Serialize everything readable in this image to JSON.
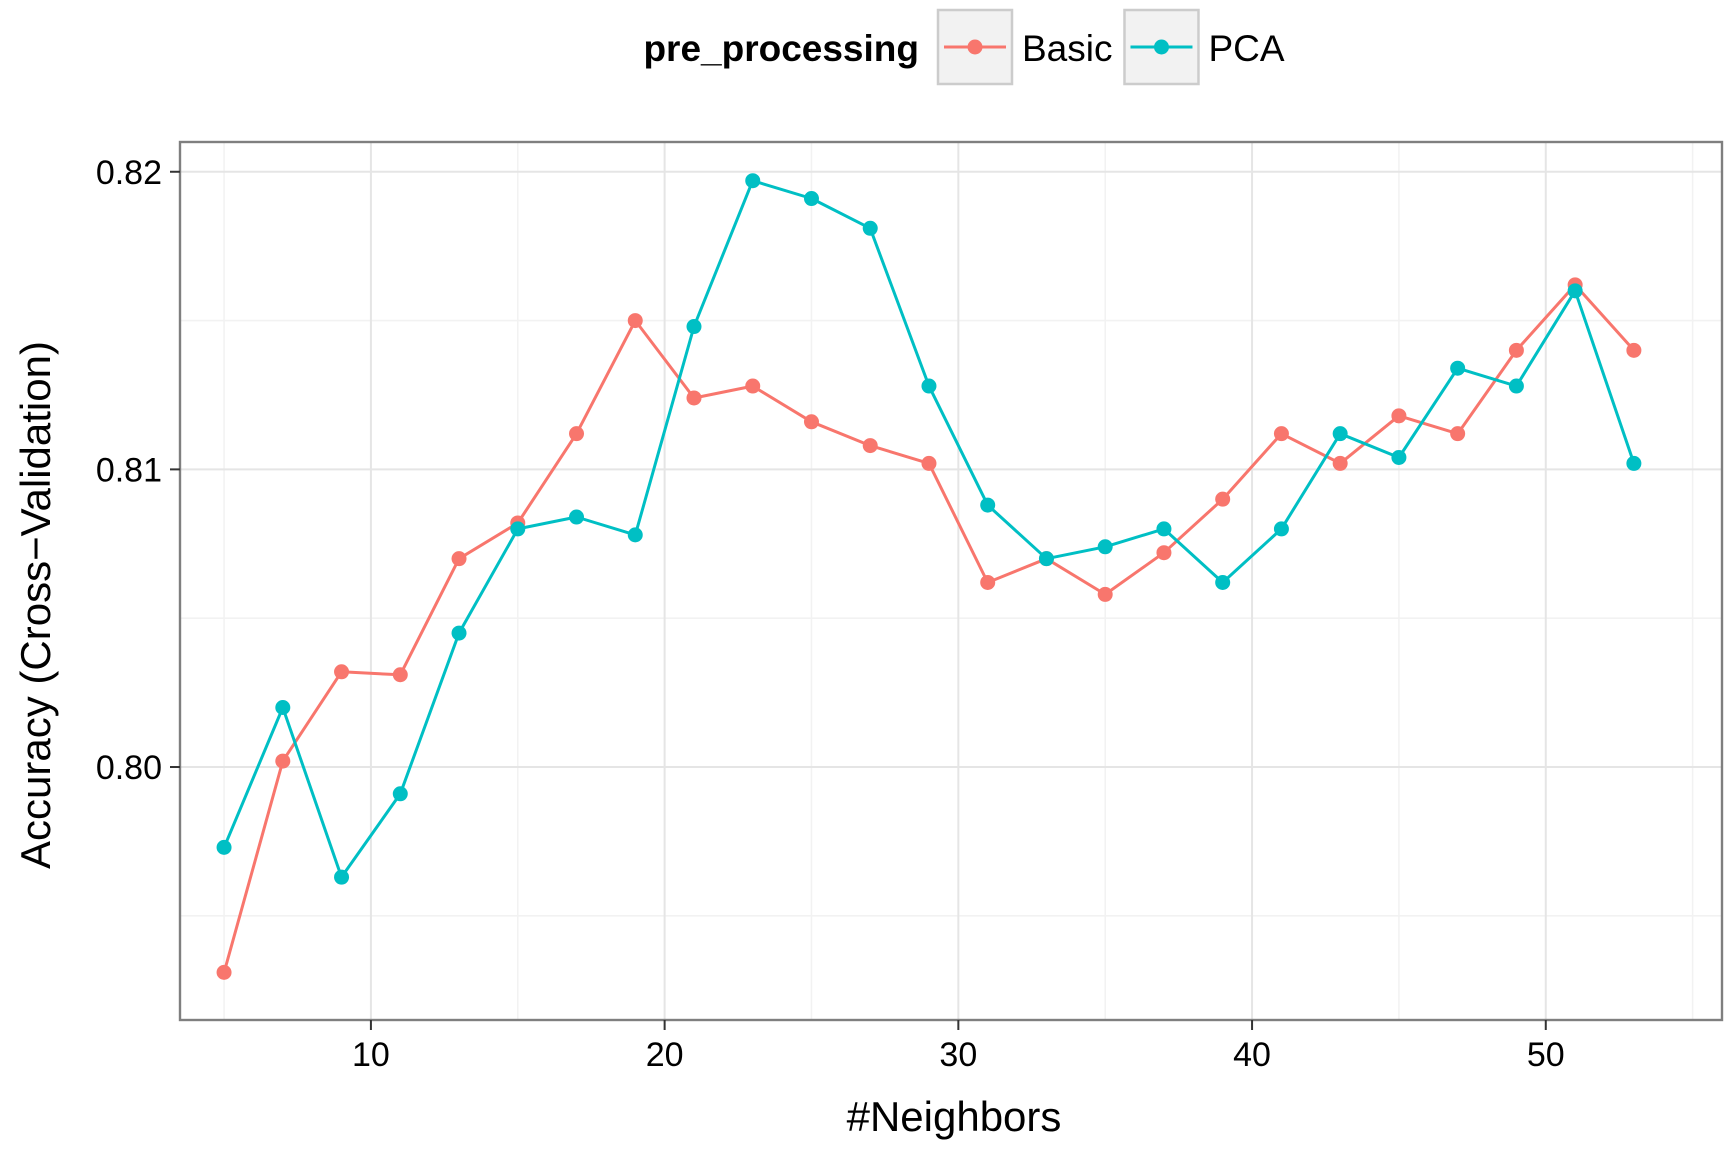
{
  "chart_data": {
    "type": "line",
    "title": "",
    "xlabel": "#Neighbors",
    "ylabel": "Accuracy (Cross−Validation)",
    "xlim": [
      3.5,
      56
    ],
    "ylim": [
      0.7915,
      0.821
    ],
    "x_ticks": [
      10,
      20,
      30,
      40,
      50
    ],
    "x_tick_labels": [
      "10",
      "20",
      "30",
      "40",
      "50"
    ],
    "y_ticks": [
      0.8,
      0.81,
      0.82
    ],
    "y_tick_labels": [
      "0.80",
      "0.81",
      "0.82"
    ],
    "x_minor_ticks": [
      5,
      15,
      25,
      35,
      45,
      55
    ],
    "y_minor_ticks": [
      0.795,
      0.805,
      0.815
    ],
    "grid": true,
    "legend": {
      "title": "pre_processing",
      "position": "top"
    },
    "x": [
      5,
      7,
      9,
      11,
      13,
      15,
      17,
      19,
      21,
      23,
      25,
      27,
      29,
      31,
      33,
      35,
      37,
      39,
      41,
      43,
      45,
      47,
      49,
      51,
      53
    ],
    "series": [
      {
        "name": "Basic",
        "color": "#F8766D",
        "values": [
          0.7931,
          0.8002,
          0.8032,
          0.8031,
          0.807,
          0.8082,
          0.8112,
          0.815,
          0.8124,
          0.8128,
          0.8116,
          0.8108,
          0.8102,
          0.8062,
          0.807,
          0.8058,
          0.8072,
          0.809,
          0.8112,
          0.8102,
          0.8118,
          0.8112,
          0.814,
          0.8162,
          0.814
        ]
      },
      {
        "name": "PCA",
        "color": "#00BFC4",
        "values": [
          0.7973,
          0.802,
          0.7963,
          0.7991,
          0.8045,
          0.808,
          0.8084,
          0.8078,
          0.8148,
          0.8197,
          0.8191,
          0.8181,
          0.8128,
          0.8088,
          0.807,
          0.8074,
          0.808,
          0.8062,
          0.808,
          0.8112,
          0.8104,
          0.8134,
          0.8128,
          0.816,
          0.8102
        ]
      }
    ]
  }
}
